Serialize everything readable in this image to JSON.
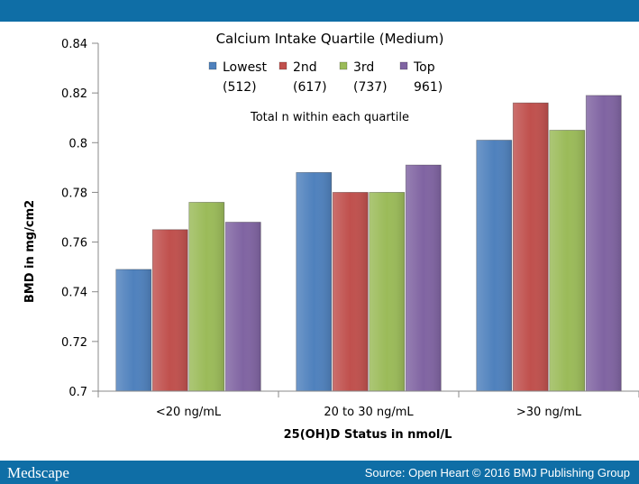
{
  "header": {
    "logo": "Medscape",
    "source": "Source: Open Heart © 2016 BMJ Publishing Group"
  },
  "chart_data": {
    "type": "bar",
    "title": "Calcium Intake Quartile (Medium)",
    "annotation": "Total n within each quartile",
    "xlabel": "25(OH)D Status in nmol/L",
    "ylabel": "BMD in mg/cm2",
    "categories": [
      "<20 ng/mL",
      "20 to 30 ng/mL",
      ">30 ng/mL"
    ],
    "ylim": [
      0.7,
      0.84
    ],
    "yticks": [
      "0.7",
      "0.72",
      "0.74",
      "0.76",
      "0.78",
      "0.8",
      "0.82",
      "0.84"
    ],
    "grid": false,
    "legend_position": "top",
    "series": [
      {
        "name": "Lowest",
        "count": "(512)",
        "color": "#4f81bd",
        "values": [
          0.749,
          0.788,
          0.801
        ]
      },
      {
        "name": "2nd",
        "count": "(617)",
        "color": "#c0504d",
        "values": [
          0.765,
          0.78,
          0.816
        ]
      },
      {
        "name": "3rd",
        "count": "(737)",
        "color": "#9bbb59",
        "values": [
          0.776,
          0.78,
          0.805
        ]
      },
      {
        "name": "Top",
        "count": "961)",
        "color": "#8064a2",
        "values": [
          0.768,
          0.791,
          0.819
        ]
      }
    ]
  }
}
